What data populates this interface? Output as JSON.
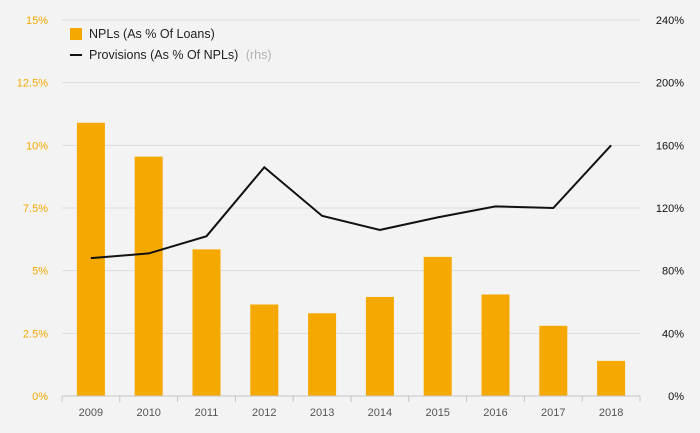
{
  "chart_data": {
    "type": "bar+line",
    "categories": [
      "2009",
      "2010",
      "2011",
      "2012",
      "2013",
      "2014",
      "2015",
      "2016",
      "2017",
      "2018"
    ],
    "series": [
      {
        "name": "NPLs (As % Of Loans)",
        "type": "bar",
        "axis": "left",
        "color": "#f5a800",
        "values": [
          10.9,
          9.55,
          5.85,
          3.65,
          3.3,
          3.95,
          5.55,
          4.05,
          2.8,
          1.4
        ]
      },
      {
        "name": "Provisions (As % Of NPLs)",
        "name_suffix": "(rhs)",
        "type": "line",
        "axis": "right",
        "color": "#111111",
        "values": [
          88,
          91,
          102,
          146,
          115,
          106,
          114,
          121,
          120,
          160
        ]
      }
    ],
    "y_left": {
      "range": [
        0,
        15
      ],
      "ticks": [
        0,
        2.5,
        5,
        7.5,
        10,
        12.5,
        15
      ],
      "tick_labels": [
        "0%",
        "2.5%",
        "5%",
        "7.5%",
        "10%",
        "12.5%",
        "15%"
      ],
      "color": "#f5a800"
    },
    "y_right": {
      "range": [
        0,
        240
      ],
      "ticks": [
        0,
        40,
        80,
        120,
        160,
        200,
        240
      ],
      "tick_labels": [
        "0%",
        "40%",
        "80%",
        "120%",
        "160%",
        "200%",
        "240%"
      ],
      "color": "#111111"
    },
    "grid": true,
    "legend_position": "top-left"
  }
}
